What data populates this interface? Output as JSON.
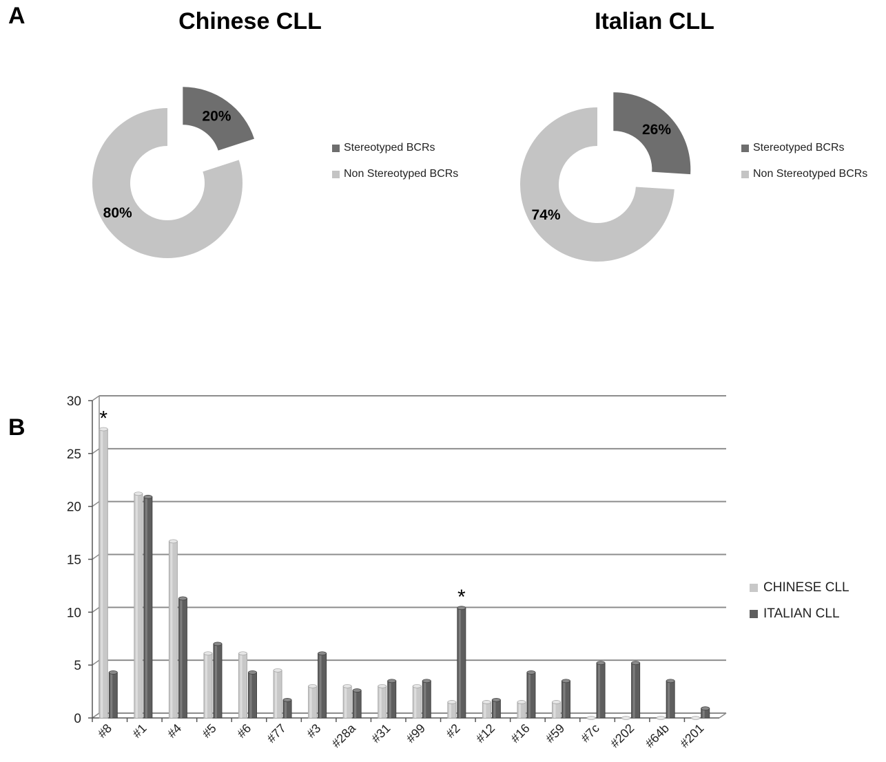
{
  "panels": {
    "a_label": "A",
    "b_label": "B"
  },
  "donut_charts": [
    {
      "title": "Chinese CLL"
    },
    {
      "title": "Italian CLL"
    }
  ],
  "donut_legend": [
    "Stereotyped BCRs",
    "Non Stereotyped BCRs"
  ],
  "bar_legend": [
    "CHINESE CLL",
    "ITALIAN CLL"
  ],
  "colors": {
    "stereotyped": "#6e6e6e",
    "non_stereotyped": "#c4c4c4",
    "chinese": "#c8c8c8",
    "italian": "#5e5e5e",
    "grid": "#8c8c8c"
  },
  "chart_data": [
    {
      "type": "pie",
      "title": "Chinese CLL",
      "labels": [
        "Stereotyped BCRs",
        "Non Stereotyped BCRs"
      ],
      "values": [
        20,
        80
      ],
      "value_labels": [
        "20%",
        "80%"
      ],
      "legend": "right"
    },
    {
      "type": "pie",
      "title": "Italian CLL",
      "labels": [
        "Stereotyped BCRs",
        "Non Stereotyped BCRs"
      ],
      "values": [
        26,
        74
      ],
      "value_labels": [
        "26%",
        "74%"
      ],
      "legend": "right"
    },
    {
      "type": "bar",
      "categories": [
        "#8",
        "#1",
        "#4",
        "#5",
        "#6",
        "#77",
        "#3",
        "#28a",
        "#31",
        "#99",
        "#2",
        "#12",
        "#16",
        "#59",
        "#7c",
        "#202",
        "#64b",
        "#201"
      ],
      "series": [
        {
          "name": "CHINESE CLL",
          "values": [
            27.3,
            21.2,
            16.7,
            6.1,
            6.1,
            4.5,
            3.0,
            3.0,
            3.0,
            3.0,
            1.5,
            1.5,
            1.5,
            1.5,
            0,
            0,
            0,
            0
          ]
        },
        {
          "name": "ITALIAN CLL",
          "values": [
            4.3,
            20.9,
            11.3,
            7.0,
            4.3,
            1.7,
            6.1,
            2.6,
            3.5,
            3.5,
            10.4,
            1.7,
            4.3,
            3.5,
            5.2,
            5.2,
            3.5,
            0.9
          ]
        }
      ],
      "yticks": [
        0,
        5,
        10,
        15,
        20,
        25,
        30
      ],
      "ylim": [
        0,
        30
      ],
      "annotations": [
        {
          "category": "#8",
          "text": "*"
        },
        {
          "category": "#2",
          "text": "*"
        }
      ],
      "grid": true,
      "legend": "right"
    }
  ]
}
